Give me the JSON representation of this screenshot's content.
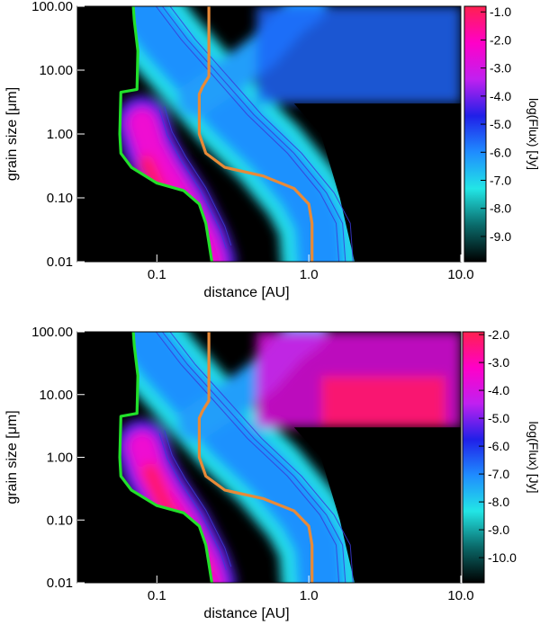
{
  "colors": {
    "green_curve": "#22e02a",
    "orange_curve": "#e88a38",
    "contour": "#3a3ad8",
    "colorbar_stops": [
      "#000000",
      "#0a6a6a",
      "#22e6e6",
      "#1f8cff",
      "#2020e8",
      "#c020f0",
      "#ff00c8",
      "#ff2050"
    ]
  },
  "chart_data": [
    {
      "type": "heatmap",
      "panel": "top",
      "xlabel": "distance [AU]",
      "ylabel": "grain size [μm]",
      "x_scale": "log",
      "y_scale": "log",
      "xlim": [
        0.03,
        10.0
      ],
      "ylim": [
        0.01,
        100.0
      ],
      "x_ticks": [
        {
          "value": 0.1,
          "label": "0.1"
        },
        {
          "value": 1.0,
          "label": "1.0"
        },
        {
          "value": 10.0,
          "label": "10.0"
        }
      ],
      "y_ticks": [
        {
          "value": 0.01,
          "label": "0.01"
        },
        {
          "value": 0.1,
          "label": "0.10"
        },
        {
          "value": 1.0,
          "label": "1.00"
        },
        {
          "value": 10.0,
          "label": "10.00"
        },
        {
          "value": 100.0,
          "label": "100.00"
        }
      ],
      "colorbar": {
        "label": "log(Flux) [Jy]",
        "range": [
          -9.9,
          -0.8
        ],
        "ticks": [
          {
            "value": -1.0,
            "label": "-1.0"
          },
          {
            "value": -2.0,
            "label": "-2.0"
          },
          {
            "value": -3.0,
            "label": "-3.0"
          },
          {
            "value": -4.0,
            "label": "-4.0"
          },
          {
            "value": -5.0,
            "label": "-5.0"
          },
          {
            "value": -6.0,
            "label": "-6.0"
          },
          {
            "value": -7.0,
            "label": "-7.0"
          },
          {
            "value": -8.0,
            "label": "-8.0"
          },
          {
            "value": -9.0,
            "label": "-9.0"
          }
        ]
      },
      "grid": false,
      "lines": [
        {
          "color": "green",
          "points": [
            [
              0.07,
              100
            ],
            [
              0.071,
              60
            ],
            [
              0.075,
              20
            ],
            [
              0.074,
              5
            ],
            [
              0.058,
              4.5
            ],
            [
              0.057,
              1.0
            ],
            [
              0.058,
              0.5
            ],
            [
              0.068,
              0.3
            ],
            [
              0.1,
              0.17
            ],
            [
              0.15,
              0.13
            ],
            [
              0.19,
              0.08
            ],
            [
              0.21,
              0.04
            ],
            [
              0.22,
              0.02
            ],
            [
              0.23,
              0.01
            ]
          ]
        },
        {
          "color": "orange",
          "points": [
            [
              0.22,
              100
            ],
            [
              0.22,
              20
            ],
            [
              0.22,
              8
            ],
            [
              0.2,
              5.5
            ],
            [
              0.19,
              4.2
            ],
            [
              0.19,
              1.0
            ],
            [
              0.21,
              0.5
            ],
            [
              0.28,
              0.3
            ],
            [
              0.5,
              0.22
            ],
            [
              0.8,
              0.14
            ],
            [
              1.0,
              0.08
            ],
            [
              1.05,
              0.04
            ],
            [
              1.05,
              0.02
            ],
            [
              1.05,
              0.01
            ]
          ]
        }
      ]
    },
    {
      "type": "heatmap",
      "panel": "bottom",
      "xlabel": "distance [AU]",
      "ylabel": "grain size [μm]",
      "x_scale": "log",
      "y_scale": "log",
      "xlim": [
        0.03,
        10.0
      ],
      "ylim": [
        0.01,
        100.0
      ],
      "x_ticks": [
        {
          "value": 0.1,
          "label": "0.1"
        },
        {
          "value": 1.0,
          "label": "1.0"
        },
        {
          "value": 10.0,
          "label": "10.0"
        }
      ],
      "y_ticks": [
        {
          "value": 0.01,
          "label": "0.01"
        },
        {
          "value": 0.1,
          "label": "0.10"
        },
        {
          "value": 1.0,
          "label": "1.00"
        },
        {
          "value": 10.0,
          "label": "10.00"
        },
        {
          "value": 100.0,
          "label": "100.00"
        }
      ],
      "colorbar": {
        "label": "log(Flux) [Jy]",
        "range": [
          -10.9,
          -1.9
        ],
        "ticks": [
          {
            "value": -2.0,
            "label": "-2.0"
          },
          {
            "value": -3.0,
            "label": "-3.0"
          },
          {
            "value": -4.0,
            "label": "-4.0"
          },
          {
            "value": -5.0,
            "label": "-5.0"
          },
          {
            "value": -6.0,
            "label": "-6.0"
          },
          {
            "value": -7.0,
            "label": "-7.0"
          },
          {
            "value": -8.0,
            "label": "-8.0"
          },
          {
            "value": -9.0,
            "label": "-9.0"
          },
          {
            "value": -10.0,
            "label": "-10.0"
          }
        ]
      },
      "grid": false,
      "lines": [
        {
          "color": "green",
          "points": [
            [
              0.07,
              100
            ],
            [
              0.071,
              60
            ],
            [
              0.075,
              20
            ],
            [
              0.074,
              5
            ],
            [
              0.058,
              4.5
            ],
            [
              0.057,
              1.0
            ],
            [
              0.058,
              0.5
            ],
            [
              0.068,
              0.3
            ],
            [
              0.1,
              0.17
            ],
            [
              0.15,
              0.13
            ],
            [
              0.19,
              0.08
            ],
            [
              0.21,
              0.04
            ],
            [
              0.22,
              0.02
            ],
            [
              0.23,
              0.01
            ]
          ]
        },
        {
          "color": "orange",
          "points": [
            [
              0.22,
              100
            ],
            [
              0.22,
              20
            ],
            [
              0.22,
              8
            ],
            [
              0.2,
              5.5
            ],
            [
              0.19,
              4.2
            ],
            [
              0.19,
              1.0
            ],
            [
              0.21,
              0.5
            ],
            [
              0.28,
              0.3
            ],
            [
              0.5,
              0.22
            ],
            [
              0.8,
              0.14
            ],
            [
              1.0,
              0.08
            ],
            [
              1.05,
              0.04
            ],
            [
              1.05,
              0.02
            ],
            [
              1.05,
              0.01
            ]
          ]
        }
      ]
    }
  ]
}
